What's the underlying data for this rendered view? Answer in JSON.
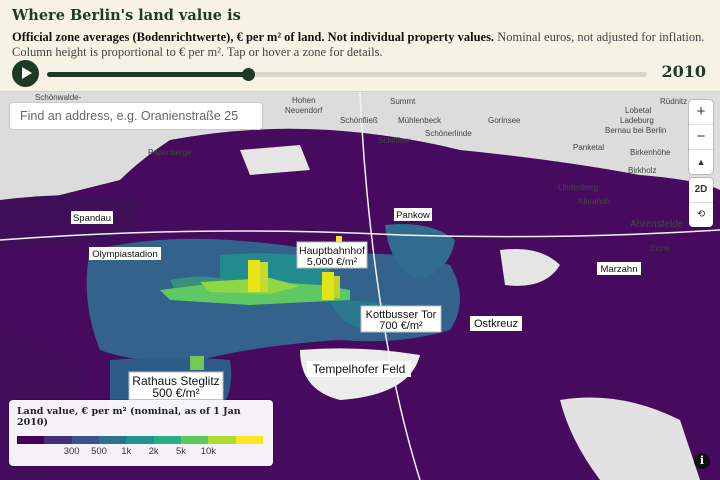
{
  "header": {
    "title": "Where Berlin's land value is",
    "subtitle_bold": "Official zone averages (Bodenrichtwerte), € per m² of land. Not individual property values.",
    "subtitle_rest": "Nominal euros, not adjusted for inflation. Column height is proportional to € per m². Tap or hover a zone for details."
  },
  "timeline": {
    "year": "2010",
    "progress": 0.335,
    "play_icon": "play-icon"
  },
  "search": {
    "placeholder": "Find an address, e.g. Oranienstraße 25"
  },
  "map_controls": {
    "zoom_in": "+",
    "zoom_out": "−",
    "compass": "▲",
    "view_2d": "2D",
    "rotate": "⟲"
  },
  "legend": {
    "title": "Land value, € per m² (nominal, as of 1 Jan 2010)",
    "colors": [
      "#440154",
      "#472d7b",
      "#3b528b",
      "#2c728e",
      "#21918c",
      "#28ae80",
      "#5ec962",
      "#addc30",
      "#fde725"
    ],
    "ticks": [
      "300",
      "500",
      "1k",
      "2k",
      "5k",
      "10k"
    ]
  },
  "labels": {
    "callouts": [
      {
        "name": "Hauptbahnhof",
        "value": "5,000 €/m²"
      },
      {
        "name": "Kottbusser Tor",
        "value": "700 €/m²"
      },
      {
        "name": "Rathaus Steglitz",
        "value": "500 €/m²"
      }
    ],
    "places": [
      "Ostkreuz",
      "Tempelhofer Feld",
      "Olympiastadion",
      "Spandau",
      "Pankow",
      "Marzahn"
    ],
    "towns": [
      "Schönwalde-",
      "Hohen",
      "Neuendorf",
      "Summt",
      "Rüdnitz",
      "Lobetal",
      "Ladeburg",
      "Bernau bei Berlin",
      "Schönfließ",
      "Mühlenbeck",
      "Gorinsee",
      "Schildow",
      "Schönerlinde",
      "Papenberge",
      "Panketal",
      "Birkenhöhe",
      "Birkholz",
      "Lindenberg",
      "Klarahöh",
      "Ahrensfelde",
      "Eiche"
    ]
  },
  "colors": {
    "header_bg": "#f6f3e4",
    "accent": "#1e3a24"
  }
}
